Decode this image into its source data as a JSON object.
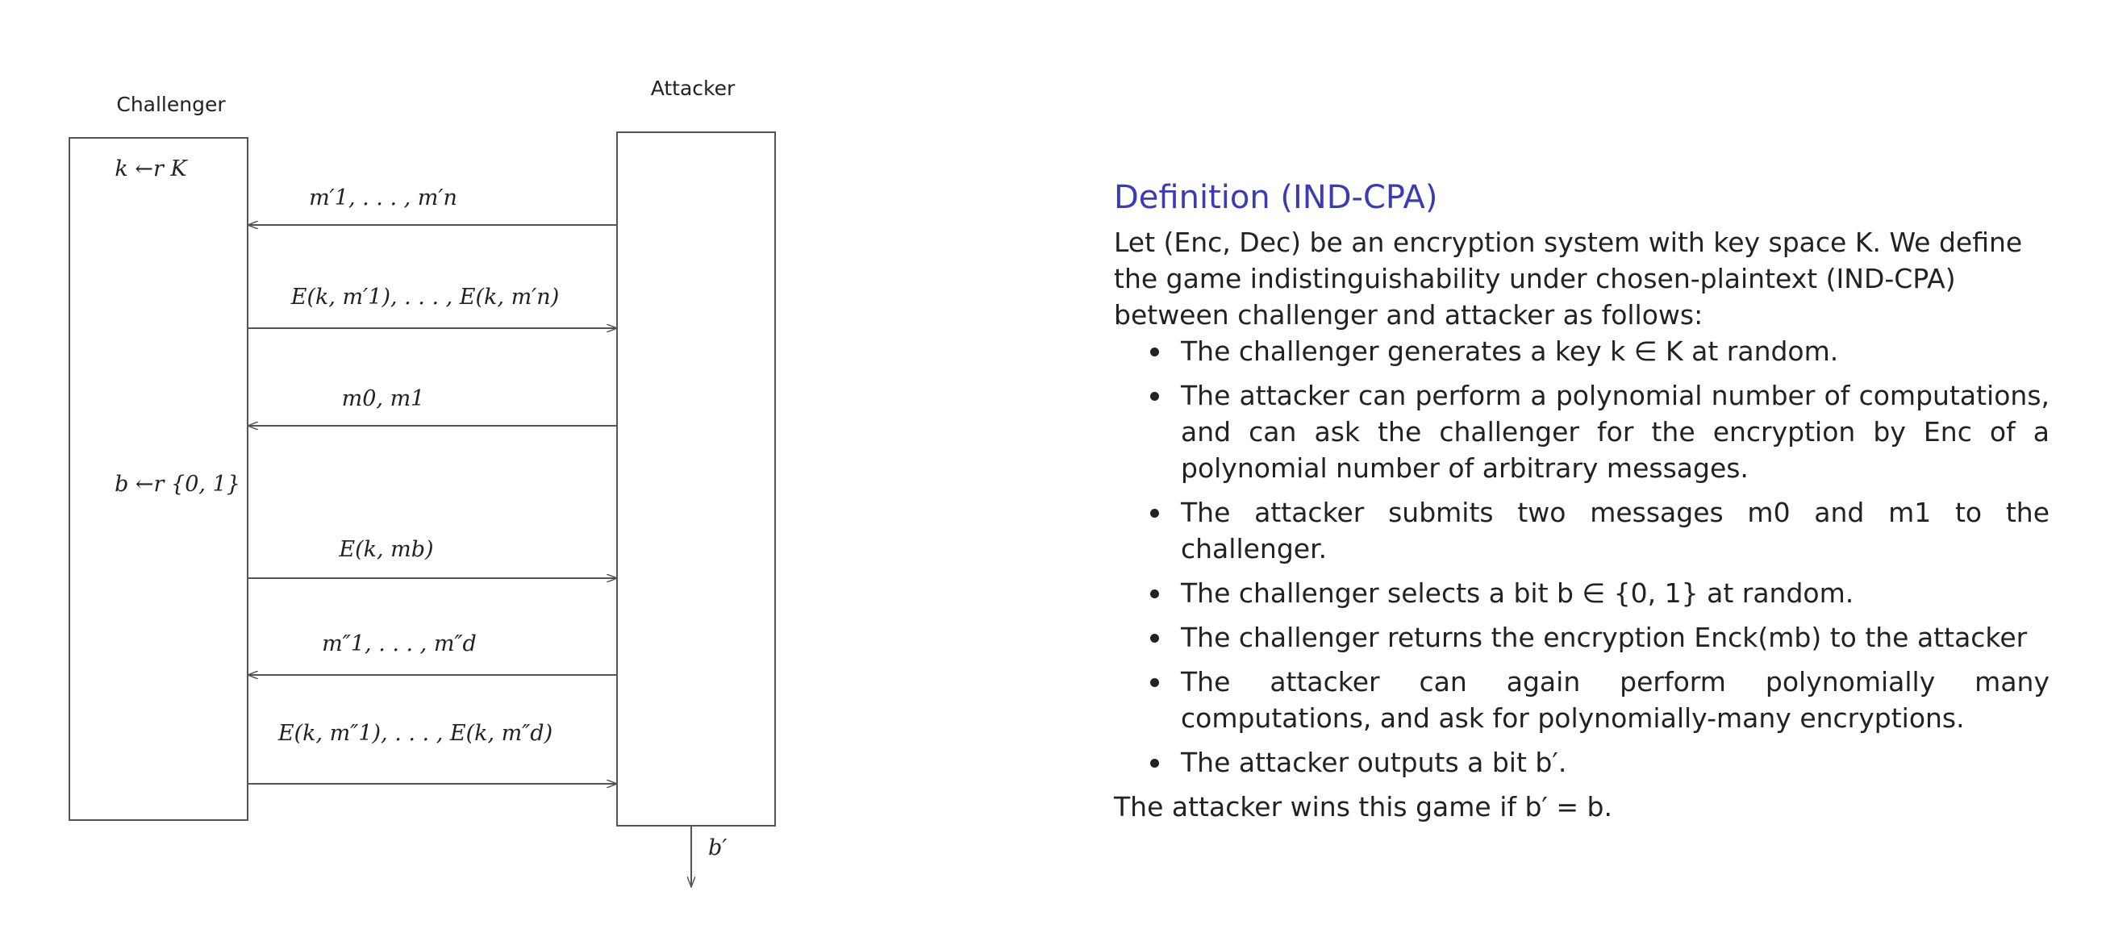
{
  "diagram": {
    "challenger_label": "Challenger",
    "attacker_label": "Attacker",
    "challenger_steps": [
      "k ←r K",
      "b ←r {0, 1}"
    ],
    "messages": [
      {
        "direction": "attacker-to-challenger",
        "label": "m′1, . . . , m′n"
      },
      {
        "direction": "challenger-to-attacker",
        "label": "E(k, m′1), . . . , E(k, m′n)"
      },
      {
        "direction": "attacker-to-challenger",
        "label": "m0, m1"
      },
      {
        "direction": "challenger-to-attacker",
        "label": "E(k, mb)"
      },
      {
        "direction": "attacker-to-challenger",
        "label": "m″1, . . . , m″d"
      },
      {
        "direction": "challenger-to-attacker",
        "label": "E(k, m″1), . . . , E(k, m″d)"
      }
    ],
    "output_label": "b′"
  },
  "definition": {
    "title": "Definition (IND-CPA)",
    "intro": "Let (Enc, Dec) be an encryption system with key space K. We define the game indistinguishability under chosen-plaintext (IND-CPA) between challenger and attacker as follows:",
    "items": [
      "The challenger generates a key k ∈ K at random.",
      "The attacker can perform a polynomial number of computations, and can ask the challenger for the encryption by Enc of a polynomial number of arbitrary messages.",
      "The attacker submits two messages m0 and m1 to the challenger.",
      "The challenger selects a bit b ∈ {0, 1} at random.",
      "The challenger returns the encryption Enck(mb) to the attacker",
      "The attacker can again perform polynomially many computations, and ask for polynomially-many encryptions.",
      "The attacker outputs a bit b′."
    ],
    "conclusion": "The attacker wins this game if b′ = b."
  },
  "colors": {
    "title": "#3b3bb3",
    "lines": "#555555",
    "text": "#222222"
  }
}
